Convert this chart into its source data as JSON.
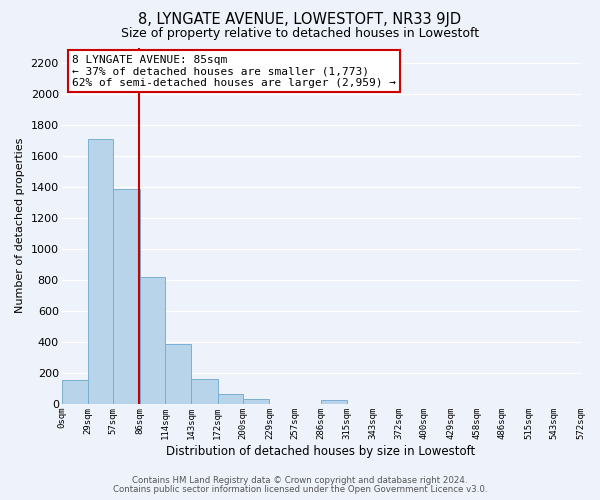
{
  "title": "8, LYNGATE AVENUE, LOWESTOFT, NR33 9JD",
  "subtitle": "Size of property relative to detached houses in Lowestoft",
  "xlabel": "Distribution of detached houses by size in Lowestoft",
  "ylabel": "Number of detached properties",
  "bar_color": "#b8d4eb",
  "bar_edge_color": "#7aafd4",
  "background_color": "#eef2fa",
  "grid_color": "#ffffff",
  "marker_line_x": 85,
  "marker_line_color": "#cc0000",
  "annotation_text": "8 LYNGATE AVENUE: 85sqm\n← 37% of detached houses are smaller (1,773)\n62% of semi-detached houses are larger (2,959) →",
  "annotation_box_color": "#ffffff",
  "annotation_box_edge": "#cc0000",
  "footer_line1": "Contains HM Land Registry data © Crown copyright and database right 2024.",
  "footer_line2": "Contains public sector information licensed under the Open Government Licence v3.0.",
  "bin_edges": [
    0,
    29,
    57,
    86,
    114,
    143,
    172,
    200,
    229,
    257,
    286,
    315,
    343,
    372,
    400,
    429,
    458,
    486,
    515,
    543,
    572
  ],
  "bar_heights": [
    155,
    1710,
    1390,
    820,
    385,
    160,
    65,
    30,
    0,
    0,
    25,
    0,
    0,
    0,
    0,
    0,
    0,
    0,
    0,
    0
  ],
  "ylim": [
    0,
    2300
  ],
  "xlim": [
    0,
    572
  ],
  "yticks": [
    0,
    200,
    400,
    600,
    800,
    1000,
    1200,
    1400,
    1600,
    1800,
    2000,
    2200
  ],
  "xtick_labels": [
    "0sqm",
    "29sqm",
    "57sqm",
    "86sqm",
    "114sqm",
    "143sqm",
    "172sqm",
    "200sqm",
    "229sqm",
    "257sqm",
    "286sqm",
    "315sqm",
    "343sqm",
    "372sqm",
    "400sqm",
    "429sqm",
    "458sqm",
    "486sqm",
    "515sqm",
    "543sqm",
    "572sqm"
  ]
}
